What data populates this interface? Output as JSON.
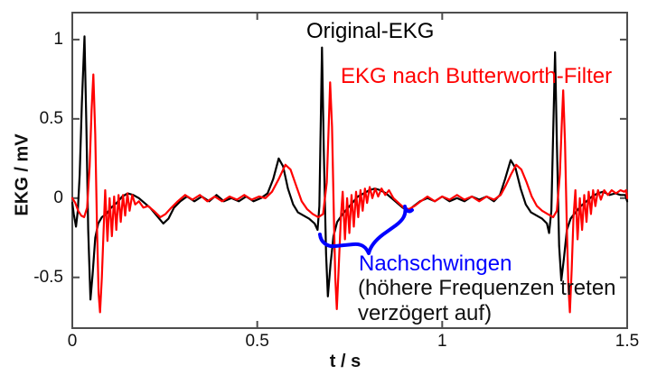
{
  "labels": {
    "series_black": "Original-EKG",
    "series_red": "EKG nach Butterworth-Filter",
    "annotation": "Nachschwingen",
    "annotation_note1": "(höhere Frequenzen treten",
    "annotation_note2": "verzögert auf)",
    "xlabel": "t / s",
    "ylabel": "EKG / mV"
  },
  "colors": {
    "original_series": "#000000",
    "filtered_series": "#ff0000",
    "annotation_blue": "#0000ff",
    "axis_gray": "#4d4d4d",
    "text_black": "#111111"
  },
  "chart_data": {
    "type": "line",
    "title": "",
    "xlabel": "t / s",
    "ylabel": "EKG / mV",
    "xlim": [
      0,
      1.5
    ],
    "ylim": [
      -0.82,
      1.17
    ],
    "x_ticks": [
      0,
      0.5,
      1,
      1.5
    ],
    "x_tick_labels": [
      "0",
      "0.5",
      "1",
      "1.5"
    ],
    "y_ticks": [
      1,
      0.5,
      0,
      -0.5
    ],
    "y_tick_labels": [
      "1",
      "0.5",
      "0",
      "-0.5"
    ],
    "grid": false,
    "legend_position": "inline text annotations inside plot (top)",
    "annotations": [
      {
        "text": "Nachschwingen",
        "color": "#0000ff",
        "x": 0.77,
        "y": -0.48
      },
      {
        "text": "(höhere Frequenzen treten verzögert auf)",
        "color": "#111111",
        "x": 0.77,
        "y": -0.62
      },
      {
        "type": "brace",
        "color": "#0000ff",
        "x_from": 0.68,
        "x_to": 0.91,
        "y_from": -0.3,
        "y_to": -0.08,
        "meaning": "marks ringing region of filtered signal"
      }
    ],
    "series": [
      {
        "name": "Original-EKG",
        "color": "#000000",
        "points": [
          [
            0.0,
            -0.03
          ],
          [
            0.004,
            -0.1
          ],
          [
            0.01,
            -0.18
          ],
          [
            0.015,
            -0.08
          ],
          [
            0.02,
            0.15
          ],
          [
            0.026,
            0.6
          ],
          [
            0.033,
            1.02
          ],
          [
            0.038,
            0.45
          ],
          [
            0.043,
            -0.2
          ],
          [
            0.049,
            -0.64
          ],
          [
            0.055,
            -0.48
          ],
          [
            0.062,
            -0.25
          ],
          [
            0.07,
            -0.16
          ],
          [
            0.08,
            -0.12
          ],
          [
            0.092,
            -0.1
          ],
          [
            0.105,
            -0.06
          ],
          [
            0.12,
            -0.03
          ],
          [
            0.135,
            0.01
          ],
          [
            0.15,
            0.03
          ],
          [
            0.165,
            0.02
          ],
          [
            0.18,
            0.0
          ],
          [
            0.195,
            -0.03
          ],
          [
            0.21,
            -0.06
          ],
          [
            0.228,
            -0.11
          ],
          [
            0.246,
            -0.16
          ],
          [
            0.26,
            -0.13
          ],
          [
            0.275,
            -0.06
          ],
          [
            0.292,
            -0.02
          ],
          [
            0.31,
            0.01
          ],
          [
            0.33,
            -0.02
          ],
          [
            0.35,
            0.01
          ],
          [
            0.37,
            -0.02
          ],
          [
            0.39,
            0.02
          ],
          [
            0.41,
            -0.02
          ],
          [
            0.43,
            0.0
          ],
          [
            0.45,
            -0.02
          ],
          [
            0.47,
            0.01
          ],
          [
            0.49,
            -0.02
          ],
          [
            0.51,
            0.0
          ],
          [
            0.528,
            0.03
          ],
          [
            0.543,
            0.12
          ],
          [
            0.558,
            0.25
          ],
          [
            0.57,
            0.2
          ],
          [
            0.583,
            0.06
          ],
          [
            0.597,
            -0.04
          ],
          [
            0.61,
            -0.09
          ],
          [
            0.625,
            -0.11
          ],
          [
            0.64,
            -0.13
          ],
          [
            0.655,
            -0.16
          ],
          [
            0.663,
            -0.2
          ],
          [
            0.668,
            -0.05
          ],
          [
            0.675,
            0.95
          ],
          [
            0.68,
            0.3
          ],
          [
            0.686,
            -0.35
          ],
          [
            0.691,
            -0.62
          ],
          [
            0.698,
            -0.42
          ],
          [
            0.706,
            -0.24
          ],
          [
            0.716,
            -0.15
          ],
          [
            0.728,
            -0.11
          ],
          [
            0.742,
            -0.07
          ],
          [
            0.757,
            -0.03
          ],
          [
            0.772,
            0.01
          ],
          [
            0.788,
            0.03
          ],
          [
            0.803,
            0.05
          ],
          [
            0.818,
            0.06
          ],
          [
            0.833,
            0.05
          ],
          [
            0.848,
            0.03
          ],
          [
            0.863,
            0.0
          ],
          [
            0.878,
            -0.03
          ],
          [
            0.893,
            -0.06
          ],
          [
            0.908,
            -0.08
          ],
          [
            0.923,
            -0.05
          ],
          [
            0.94,
            -0.02
          ],
          [
            0.96,
            0.0
          ],
          [
            0.98,
            -0.02
          ],
          [
            1.0,
            0.01
          ],
          [
            1.02,
            -0.02
          ],
          [
            1.04,
            0.0
          ],
          [
            1.06,
            -0.02
          ],
          [
            1.08,
            0.01
          ],
          [
            1.1,
            -0.01
          ],
          [
            1.12,
            0.01
          ],
          [
            1.14,
            -0.02
          ],
          [
            1.156,
            0.02
          ],
          [
            1.17,
            0.12
          ],
          [
            1.185,
            0.24
          ],
          [
            1.198,
            0.19
          ],
          [
            1.212,
            0.06
          ],
          [
            1.226,
            -0.04
          ],
          [
            1.24,
            -0.09
          ],
          [
            1.255,
            -0.11
          ],
          [
            1.27,
            -0.13
          ],
          [
            1.283,
            -0.16
          ],
          [
            1.289,
            -0.22
          ],
          [
            1.295,
            -0.08
          ],
          [
            1.305,
            0.92
          ],
          [
            1.31,
            0.35
          ],
          [
            1.316,
            -0.3
          ],
          [
            1.322,
            -0.52
          ],
          [
            1.329,
            -0.38
          ],
          [
            1.337,
            -0.2
          ],
          [
            1.347,
            -0.13
          ],
          [
            1.36,
            -0.09
          ],
          [
            1.375,
            -0.05
          ],
          [
            1.39,
            -0.02
          ],
          [
            1.405,
            0.01
          ],
          [
            1.42,
            0.03
          ],
          [
            1.435,
            0.04
          ],
          [
            1.452,
            0.02
          ],
          [
            1.468,
            0.03
          ],
          [
            1.482,
            0.02
          ],
          [
            1.495,
            0.02
          ],
          [
            1.5,
            -0.02
          ]
        ]
      },
      {
        "name": "EKG nach Butterworth-Filter",
        "color": "#ff0000",
        "points": [
          [
            0.0,
            0.0
          ],
          [
            0.008,
            -0.03
          ],
          [
            0.016,
            -0.08
          ],
          [
            0.024,
            -0.11
          ],
          [
            0.032,
            -0.12
          ],
          [
            0.04,
            -0.06
          ],
          [
            0.047,
            0.2
          ],
          [
            0.052,
            0.55
          ],
          [
            0.057,
            0.78
          ],
          [
            0.062,
            0.4
          ],
          [
            0.067,
            -0.2
          ],
          [
            0.071,
            -0.6
          ],
          [
            0.075,
            -0.72
          ],
          [
            0.08,
            -0.5
          ],
          [
            0.085,
            -0.18
          ],
          [
            0.089,
            0.05
          ],
          [
            0.095,
            -0.27
          ],
          [
            0.101,
            0.0
          ],
          [
            0.107,
            -0.24
          ],
          [
            0.113,
            0.01
          ],
          [
            0.119,
            -0.2
          ],
          [
            0.125,
            0.02
          ],
          [
            0.131,
            -0.15
          ],
          [
            0.137,
            0.02
          ],
          [
            0.143,
            -0.11
          ],
          [
            0.149,
            0.03
          ],
          [
            0.155,
            -0.08
          ],
          [
            0.162,
            0.02
          ],
          [
            0.17,
            -0.04
          ],
          [
            0.18,
            -0.02
          ],
          [
            0.192,
            -0.06
          ],
          [
            0.205,
            -0.05
          ],
          [
            0.22,
            -0.08
          ],
          [
            0.238,
            -0.12
          ],
          [
            0.252,
            -0.1
          ],
          [
            0.268,
            -0.06
          ],
          [
            0.285,
            -0.02
          ],
          [
            0.305,
            0.02
          ],
          [
            0.325,
            -0.01
          ],
          [
            0.345,
            0.02
          ],
          [
            0.365,
            -0.02
          ],
          [
            0.385,
            0.01
          ],
          [
            0.405,
            -0.02
          ],
          [
            0.425,
            0.01
          ],
          [
            0.445,
            -0.01
          ],
          [
            0.465,
            0.02
          ],
          [
            0.485,
            -0.01
          ],
          [
            0.505,
            0.01
          ],
          [
            0.522,
            0.0
          ],
          [
            0.54,
            0.04
          ],
          [
            0.558,
            0.12
          ],
          [
            0.576,
            0.21
          ],
          [
            0.59,
            0.18
          ],
          [
            0.605,
            0.08
          ],
          [
            0.62,
            -0.02
          ],
          [
            0.635,
            -0.07
          ],
          [
            0.65,
            -0.1
          ],
          [
            0.665,
            -0.12
          ],
          [
            0.678,
            -0.1
          ],
          [
            0.688,
            0.1
          ],
          [
            0.693,
            0.45
          ],
          [
            0.697,
            0.73
          ],
          [
            0.702,
            0.45
          ],
          [
            0.707,
            -0.1
          ],
          [
            0.711,
            -0.5
          ],
          [
            0.715,
            -0.7
          ],
          [
            0.72,
            -0.45
          ],
          [
            0.726,
            -0.12
          ],
          [
            0.731,
            0.04
          ],
          [
            0.737,
            -0.26
          ],
          [
            0.743,
            0.0
          ],
          [
            0.749,
            -0.22
          ],
          [
            0.755,
            0.02
          ],
          [
            0.761,
            -0.18
          ],
          [
            0.767,
            0.04
          ],
          [
            0.773,
            -0.12
          ],
          [
            0.779,
            0.05
          ],
          [
            0.785,
            -0.08
          ],
          [
            0.791,
            0.06
          ],
          [
            0.797,
            -0.03
          ],
          [
            0.804,
            0.07
          ],
          [
            0.811,
            0.0
          ],
          [
            0.819,
            0.06
          ],
          [
            0.827,
            0.01
          ],
          [
            0.836,
            0.06
          ],
          [
            0.846,
            0.02
          ],
          [
            0.856,
            0.05
          ],
          [
            0.868,
            0.0
          ],
          [
            0.882,
            -0.03
          ],
          [
            0.896,
            -0.06
          ],
          [
            0.91,
            -0.07
          ],
          [
            0.925,
            -0.05
          ],
          [
            0.942,
            -0.02
          ],
          [
            0.96,
            0.01
          ],
          [
            0.98,
            -0.02
          ],
          [
            1.0,
            0.01
          ],
          [
            1.02,
            -0.01
          ],
          [
            1.04,
            0.02
          ],
          [
            1.06,
            -0.01
          ],
          [
            1.08,
            0.01
          ],
          [
            1.1,
            -0.02
          ],
          [
            1.12,
            0.01
          ],
          [
            1.14,
            -0.01
          ],
          [
            1.158,
            0.02
          ],
          [
            1.172,
            0.08
          ],
          [
            1.186,
            0.15
          ],
          [
            1.2,
            0.21
          ],
          [
            1.214,
            0.18
          ],
          [
            1.228,
            0.1
          ],
          [
            1.242,
            0.01
          ],
          [
            1.256,
            -0.05
          ],
          [
            1.27,
            -0.08
          ],
          [
            1.285,
            -0.1
          ],
          [
            1.3,
            -0.12
          ],
          [
            1.31,
            -0.08
          ],
          [
            1.318,
            0.15
          ],
          [
            1.323,
            0.45
          ],
          [
            1.327,
            0.68
          ],
          [
            1.332,
            0.35
          ],
          [
            1.337,
            -0.2
          ],
          [
            1.341,
            -0.55
          ],
          [
            1.345,
            -0.72
          ],
          [
            1.35,
            -0.45
          ],
          [
            1.355,
            -0.12
          ],
          [
            1.36,
            0.05
          ],
          [
            1.366,
            -0.26
          ],
          [
            1.372,
            0.0
          ],
          [
            1.378,
            -0.2
          ],
          [
            1.384,
            0.02
          ],
          [
            1.39,
            -0.15
          ],
          [
            1.396,
            0.04
          ],
          [
            1.402,
            -0.1
          ],
          [
            1.408,
            0.05
          ],
          [
            1.414,
            -0.05
          ],
          [
            1.421,
            0.05
          ],
          [
            1.429,
            -0.01
          ],
          [
            1.438,
            0.05
          ],
          [
            1.448,
            0.02
          ],
          [
            1.458,
            0.05
          ],
          [
            1.47,
            0.03
          ],
          [
            1.482,
            0.05
          ],
          [
            1.492,
            0.04
          ],
          [
            1.497,
            0.05
          ],
          [
            1.5,
            0.0
          ]
        ]
      }
    ]
  }
}
